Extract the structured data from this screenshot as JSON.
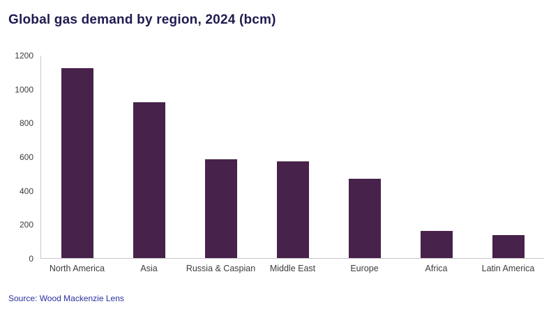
{
  "title": "Global gas demand by region, 2024 (bcm)",
  "source": "Source: Wood Mackenzie Lens",
  "colors": {
    "bar": "#47224a",
    "title": "#1d1b4f",
    "source_text": "#2a2f9e",
    "axis_line": "#c9c9c9",
    "tick_text": "#3c3c3c"
  },
  "chart_data": {
    "type": "bar",
    "title": "Global gas demand by region, 2024 (bcm)",
    "categories": [
      "North America",
      "Asia",
      "Russia & Caspian",
      "Middle East",
      "Europe",
      "Africa",
      "Latin America"
    ],
    "values": [
      1120,
      920,
      585,
      570,
      470,
      160,
      135
    ],
    "xlabel": "",
    "ylabel": "",
    "ylim": [
      0,
      1200
    ],
    "ytick_step": 200,
    "grid": false,
    "legend": "none"
  }
}
